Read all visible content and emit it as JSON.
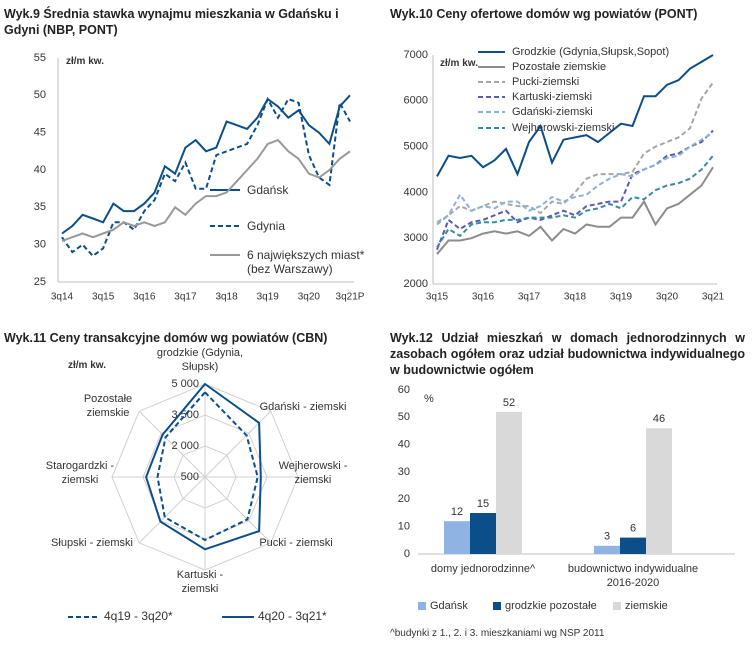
{
  "chart_data": [
    {
      "type": "line",
      "title": "Wyk.9 Średnia stawka wynajmu mieszkania w Gdańsku i Gdyni (NBP, PONT)",
      "y_label": "zł/m kw.",
      "categories": [
        "3q14",
        null,
        null,
        null,
        "3q15",
        null,
        null,
        null,
        "3q16",
        null,
        null,
        null,
        "3q17",
        null,
        null,
        null,
        "3q18",
        null,
        null,
        null,
        "3q19",
        null,
        null,
        null,
        "3q20",
        null,
        null,
        null,
        "3q21P"
      ],
      "series": [
        {
          "name": "Gdańsk",
          "color": "#0b4e8a",
          "dash": false,
          "values": [
            31.5,
            32.5,
            34,
            33.5,
            33,
            35.5,
            34.5,
            34.5,
            35.5,
            37,
            40.5,
            39.5,
            43,
            44,
            42.5,
            43,
            46.5,
            46,
            45.5,
            47,
            49.5,
            48.5,
            47,
            48,
            46,
            45,
            43.5,
            48.5,
            50
          ]
        },
        {
          "name": "Gdynia",
          "color": "#0b4e8a",
          "dash": true,
          "values": [
            31,
            29,
            30,
            28.5,
            29.5,
            33,
            33,
            32,
            34.5,
            36,
            39.5,
            38.5,
            41,
            37.5,
            37.5,
            42,
            42.5,
            43,
            43.5,
            46,
            49.5,
            47,
            49.5,
            49,
            42,
            39,
            38,
            49,
            46.5
          ]
        },
        {
          "name": "6 największych miast* (bez Warszawy)",
          "color": "#999999",
          "dash": false,
          "values": [
            30.5,
            31,
            31.5,
            31,
            31.5,
            32,
            33,
            32.5,
            33,
            32.5,
            33,
            35,
            34,
            35.5,
            36.5,
            36.5,
            37,
            38.5,
            40,
            41.5,
            43.5,
            44,
            42.5,
            41.5,
            39.5,
            39,
            40,
            41.5,
            42.5
          ]
        }
      ],
      "ylim": [
        25,
        55
      ],
      "yticks": [
        25,
        30,
        35,
        40,
        45,
        50,
        55
      ]
    },
    {
      "type": "line",
      "title": "Wyk.10 Ceny ofertowe domów wg powiatów (PONT)",
      "y_label": "zł/m kw.",
      "categories": [
        "3q15",
        null,
        null,
        null,
        "3q16",
        null,
        null,
        null,
        "3q17",
        null,
        null,
        null,
        "3q18",
        null,
        null,
        null,
        "3q19",
        null,
        null,
        null,
        "3q20",
        null,
        null,
        null,
        "3q21"
      ],
      "series": [
        {
          "name": "Grodzkie (Gdynia,Słupsk,Sopot)",
          "color": "#0b4e8a",
          "dash": false,
          "values": [
            4350,
            4800,
            4750,
            4800,
            4550,
            4700,
            4950,
            4400,
            5100,
            5450,
            4650,
            5150,
            5200,
            5250,
            5100,
            5300,
            5500,
            5450,
            6100,
            6100,
            6350,
            6450,
            6700,
            6850,
            7000
          ]
        },
        {
          "name": "Pozostałe ziemskie",
          "color": "#8c8c8c",
          "dash": false,
          "values": [
            2650,
            2950,
            2950,
            3000,
            3100,
            3150,
            3100,
            3150,
            3050,
            3250,
            2950,
            3200,
            3100,
            3300,
            3250,
            3250,
            3450,
            3450,
            3800,
            3300,
            3650,
            3750,
            3950,
            4150,
            4550
          ]
        },
        {
          "name": "Pucki-ziemski",
          "color": "#a6a6a6",
          "dash": true,
          "values": [
            3300,
            3500,
            3700,
            3600,
            3700,
            3800,
            3750,
            3700,
            3700,
            3550,
            3800,
            3750,
            4000,
            4300,
            4400,
            4400,
            4400,
            4450,
            4850,
            5000,
            5100,
            5200,
            5400,
            6050,
            6400
          ]
        },
        {
          "name": "Kartuski-ziemski",
          "color": "#5a5ab0",
          "dash": true,
          "values": [
            2750,
            3400,
            3200,
            3350,
            3400,
            3500,
            3600,
            3350,
            3450,
            3400,
            3500,
            3600,
            3500,
            3700,
            3750,
            3800,
            3800,
            4400,
            4500,
            4600,
            4800,
            4850,
            5000,
            5100,
            5350
          ]
        },
        {
          "name": "Gdański-ziemski",
          "color": "#8fb0d8",
          "dash": true,
          "values": [
            3350,
            3500,
            3950,
            3600,
            3700,
            3650,
            3800,
            3800,
            3600,
            3700,
            3900,
            3800,
            3900,
            3950,
            4150,
            4300,
            4400,
            4350,
            4500,
            4600,
            4750,
            4800,
            5000,
            5150,
            5300
          ]
        },
        {
          "name": "Wejherowski-ziemski",
          "color": "#3b8aa0",
          "dash": true,
          "values": [
            2800,
            3200,
            3050,
            3300,
            3350,
            3350,
            3400,
            3400,
            3450,
            3450,
            3450,
            3500,
            3450,
            3600,
            3650,
            3750,
            3650,
            3900,
            3850,
            4050,
            4150,
            4200,
            4300,
            4500,
            4800
          ]
        }
      ],
      "ylim": [
        2000,
        7000
      ],
      "yticks": [
        2000,
        3000,
        4000,
        5000,
        6000,
        7000
      ]
    },
    {
      "type": "radar",
      "title": "Wyk.11 Ceny transakcyjne domów wg powiatów (CBN)",
      "y_label": "zł/m kw.",
      "categories": [
        "grodzkie (Gdynia, Słupsk)",
        "Gdański - ziemski",
        "Wejherowski - ziemski",
        "Pucki - ziemski",
        "Kartuski - ziemski",
        "Słupski - ziemski",
        "Starogardzki - ziemski",
        "Pozostałe ziemskie"
      ],
      "series": [
        {
          "name": "4q19 - 3q20*",
          "color": "#0b4e8a",
          "dash": true,
          "values": [
            4600,
            3350,
            3050,
            3400,
            3550,
            3250,
            2800,
            3200
          ]
        },
        {
          "name": "4q20 - 3q21*",
          "color": "#0b4e8a",
          "dash": false,
          "values": [
            5000,
            4200,
            3200,
            4200,
            4000,
            3550,
            3350,
            3400
          ]
        }
      ],
      "rlim": [
        500,
        5000
      ],
      "rticks": [
        500,
        {
          "value": 2000,
          "label": "2 000"
        },
        {
          "value": 3500,
          "label": "3 500"
        },
        {
          "value": 5000,
          "label": "5 000"
        }
      ]
    },
    {
      "type": "bar",
      "title": "Wyk.12 Udział mieszkań w domach jednorodzinnych w zasobach ogółem oraz udział budownictwa indywidualnego w budownictwie ogółem",
      "y_label": "%",
      "categories": [
        "domy jednorodzinne^",
        "budownictwo indywidualne 2016-2020"
      ],
      "series": [
        {
          "name": "Gdańsk",
          "color": "#8db4e2",
          "values": [
            12,
            3
          ]
        },
        {
          "name": "grodzkie pozostałe",
          "color": "#0b4e8a",
          "values": [
            15,
            6
          ]
        },
        {
          "name": "ziemskie",
          "color": "#d9d9d9",
          "values": [
            52,
            46
          ]
        }
      ],
      "ylim": [
        0,
        60
      ],
      "yticks": [
        0,
        10,
        20,
        30,
        40,
        50,
        60
      ],
      "footnote": "^budynki z 1., 2. i 3. mieszkaniami wg NSP 2011"
    }
  ]
}
